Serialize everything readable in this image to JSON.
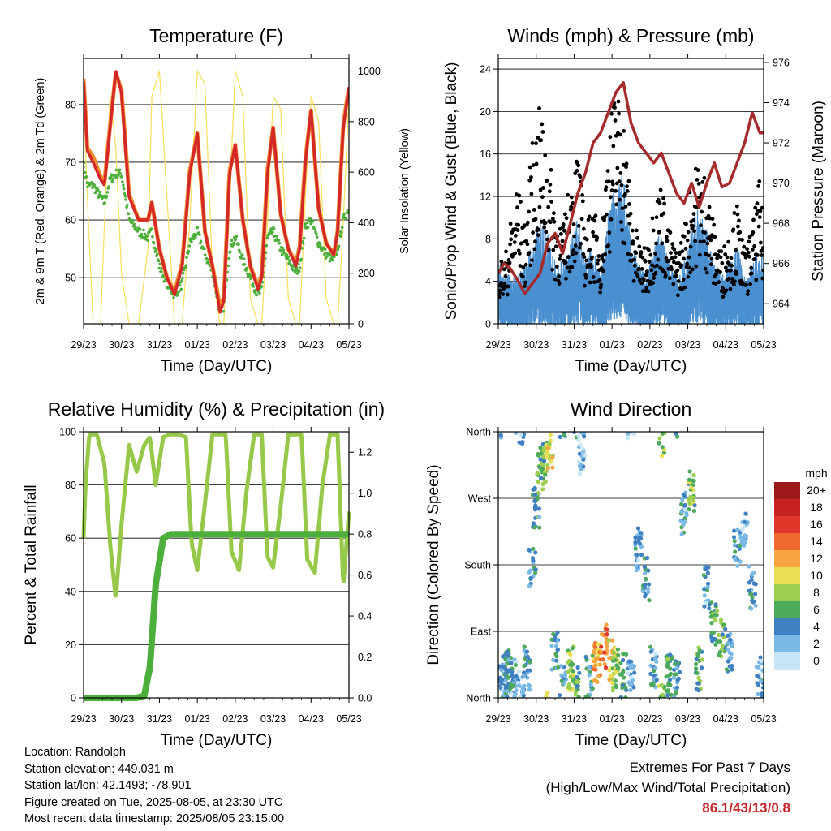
{
  "days": [
    "29/23",
    "30/23",
    "31/23",
    "01/23",
    "02/23",
    "03/23",
    "04/23",
    "05/23"
  ],
  "xlabel": "Time (Day/UTC)",
  "panels": {
    "temperature": {
      "title": "Temperature (F)",
      "ylabel_left": "2m & 9m T (Red, Orange) & 2m Td (Green)",
      "ylabel_right": "Solar Insolation (Yellow)"
    },
    "winds": {
      "title": "Winds (mph) & Pressure (mb)",
      "ylabel_left": "Sonic/Prop Wind & Gust (Blue, Black)",
      "ylabel_right": "Station Pressure (Maroon)"
    },
    "humidity": {
      "title": "Relative Humidity (%) & Precipitation (in)",
      "ylabel_left": "Percent & Total Rainfall"
    },
    "direction": {
      "title": "Wind Direction",
      "ylabel_left": "Direction (Colored By Speed)",
      "legend_title": "mph",
      "legend": [
        {
          "label": "20+",
          "color": "#9e1a1a"
        },
        {
          "label": "18",
          "color": "#c72222"
        },
        {
          "label": "16",
          "color": "#e0372b"
        },
        {
          "label": "14",
          "color": "#ef6a2e"
        },
        {
          "label": "12",
          "color": "#f7a541"
        },
        {
          "label": "10",
          "color": "#e8e052"
        },
        {
          "label": "8",
          "color": "#9ccf4f"
        },
        {
          "label": "6",
          "color": "#4caa5a"
        },
        {
          "label": "4",
          "color": "#3f80c0"
        },
        {
          "label": "2",
          "color": "#7ab8e6"
        },
        {
          "label": "0",
          "color": "#c6e5f7"
        }
      ]
    }
  },
  "info": {
    "location": "Location: Randolph",
    "elevation": "Station elevation: 449.031 m",
    "latlon": "Station lat/lon: 42.1493; -78.901",
    "created": "Figure created on Tue, 2025-08-05, at 23:30 UTC",
    "recent": "Most recent data timestamp: 2025/08/05 23:15:00"
  },
  "extremes": {
    "title": "Extremes For Past 7 Days",
    "subtitle": "(High/Low/Max Wind/Total Precipitation)",
    "value": "86.1/43/13/0.8"
  },
  "colors": {
    "temp_2m": "#d42828",
    "temp_9m": "#f08a30",
    "dewpoint": "#4caf3c",
    "solar": "#f6df5c",
    "pressure": "#a52a2a",
    "wind": "#4a90d0",
    "gust": "#000000",
    "rh": "#96c94a",
    "precip": "#4caf3c"
  },
  "chart_data": [
    {
      "type": "line",
      "title": "Temperature (F)",
      "xlabel": "Time (Day/UTC)",
      "ylabel": "2m & 9m T (Red, Orange) & 2m Td (Green)",
      "ylabel2": "Solar Insolation (Yellow)",
      "ylim": [
        42,
        88
      ],
      "y2lim": [
        0,
        1050
      ],
      "yticks": [
        50,
        60,
        70,
        80
      ],
      "y2ticks": [
        0,
        200,
        400,
        600,
        800,
        1000
      ],
      "x": [
        0,
        0.1,
        0.25,
        0.45,
        0.55,
        0.7,
        0.85,
        1,
        1.2,
        1.45,
        1.7,
        1.8,
        2,
        2.2,
        2.4,
        2.6,
        2.8,
        3,
        3.2,
        3.4,
        3.6,
        3.7,
        3.85,
        4,
        4.2,
        4.4,
        4.6,
        4.7,
        4.85,
        5,
        5.2,
        5.4,
        5.6,
        5.7,
        5.85,
        6,
        6.2,
        6.4,
        6.6,
        6.7,
        6.85,
        7
      ],
      "series": [
        {
          "name": "2m T",
          "values": [
            84,
            72,
            70,
            67,
            66,
            76,
            86,
            82,
            64,
            60,
            60,
            63,
            55,
            50,
            47,
            52,
            68,
            75,
            58,
            52,
            44,
            46,
            68,
            73,
            60,
            52,
            48,
            50,
            68,
            76,
            61,
            55,
            52,
            55,
            70,
            79,
            62,
            56,
            54,
            58,
            76,
            83
          ]
        },
        {
          "name": "9m T",
          "values": [
            84.5,
            72.5,
            71,
            67.5,
            66.5,
            76.5,
            85.5,
            82.5,
            64.5,
            60,
            60,
            63,
            55,
            50,
            47.5,
            52.5,
            68.5,
            75,
            58,
            52,
            45,
            46.5,
            68.5,
            73,
            60,
            52,
            48.5,
            50.5,
            68.5,
            76,
            61,
            55,
            52.5,
            55.5,
            70.5,
            79,
            62,
            56,
            54,
            58,
            76.5,
            83
          ]
        },
        {
          "name": "2m Td",
          "values": [
            70,
            66,
            66,
            64,
            63,
            67,
            68,
            68,
            60,
            58,
            57,
            58,
            52,
            49,
            47,
            49,
            56,
            58,
            54,
            51,
            44,
            45,
            55,
            57,
            53,
            50,
            47,
            48,
            57,
            58,
            55,
            53,
            51,
            52,
            59,
            60,
            56,
            54,
            53,
            55,
            60,
            62
          ]
        },
        {
          "name": "Solar",
          "values": [
            900,
            500,
            0,
            0,
            400,
            900,
            700,
            200,
            0,
            0,
            300,
            900,
            1000,
            500,
            0,
            0,
            400,
            1000,
            950,
            200,
            0,
            0,
            500,
            1000,
            900,
            100,
            0,
            0,
            400,
            900,
            850,
            100,
            0,
            0,
            500,
            900,
            800,
            100,
            0,
            0,
            400,
            900
          ]
        }
      ]
    },
    {
      "type": "line",
      "title": "Winds (mph) & Pressure (mb)",
      "xlabel": "Time (Day/UTC)",
      "ylabel": "Sonic/Prop Wind & Gust (Blue, Black)",
      "ylabel2": "Station Pressure (Maroon)",
      "ylim": [
        0,
        25
      ],
      "y2lim": [
        963.0,
        976.2
      ],
      "yticks": [
        0,
        4,
        8,
        12,
        16,
        20,
        24
      ],
      "y2ticks": [
        964,
        966,
        968,
        970,
        972,
        974,
        976
      ],
      "x": [
        0,
        0.15,
        0.3,
        0.5,
        0.7,
        0.9,
        1.1,
        1.3,
        1.5,
        1.7,
        1.9,
        2.1,
        2.3,
        2.5,
        2.7,
        2.9,
        3.1,
        3.3,
        3.5,
        3.7,
        3.9,
        4.1,
        4.3,
        4.5,
        4.7,
        4.9,
        5.1,
        5.3,
        5.5,
        5.7,
        5.9,
        6.1,
        6.3,
        6.5,
        6.7,
        6.9,
        7
      ],
      "series": [
        {
          "name": "Pressure",
          "values": [
            965.5,
            966,
            965.8,
            965.2,
            964.5,
            965,
            965.5,
            967,
            967.5,
            966.5,
            968,
            969.5,
            970.5,
            972,
            972.5,
            973.5,
            974.5,
            975,
            973,
            972,
            971.5,
            971,
            971.5,
            970.5,
            969.5,
            969,
            970,
            968.8,
            970,
            971,
            969.8,
            970,
            971,
            972,
            973.5,
            972.5,
            972.5
          ]
        },
        {
          "name": "Wind",
          "values": [
            4,
            3,
            3.5,
            3,
            4,
            5,
            7,
            6,
            4,
            4,
            5,
            7,
            4,
            5,
            3,
            7,
            9,
            10,
            5,
            4,
            3,
            5,
            6,
            4,
            3,
            4,
            6,
            8,
            6,
            4,
            3,
            4,
            5,
            3,
            4,
            5,
            4
          ]
        },
        {
          "name": "Gust",
          "values": [
            6,
            5,
            8,
            12,
            8,
            15,
            18,
            15,
            10,
            8,
            12,
            15,
            8,
            10,
            7,
            16,
            20,
            18,
            10,
            7,
            6,
            10,
            12,
            8,
            6,
            8,
            12,
            14,
            12,
            8,
            6,
            8,
            10,
            6,
            8,
            12,
            8
          ]
        }
      ]
    },
    {
      "type": "line",
      "title": "Relative Humidity (%) & Precipitation (in)",
      "xlabel": "Time (Day/UTC)",
      "ylabel": "Percent & Total Rainfall",
      "ylim": [
        0,
        100
      ],
      "y2lim": [
        0,
        1.3
      ],
      "yticks": [
        0,
        20,
        40,
        60,
        80,
        100
      ],
      "y2ticks": [
        0.0,
        0.2,
        0.4,
        0.6,
        0.8,
        1.0,
        1.2
      ],
      "x": [
        0,
        0.05,
        0.15,
        0.35,
        0.55,
        0.7,
        0.85,
        1,
        1.2,
        1.4,
        1.6,
        1.75,
        1.9,
        2.1,
        2.3,
        2.5,
        2.7,
        2.85,
        3,
        3.2,
        3.4,
        3.6,
        3.75,
        3.9,
        4.1,
        4.3,
        4.5,
        4.7,
        4.85,
        5,
        5.2,
        5.4,
        5.6,
        5.75,
        5.9,
        6.1,
        6.3,
        6.5,
        6.7,
        6.85,
        7
      ],
      "series": [
        {
          "name": "RH",
          "values": [
            60,
            80,
            99,
            99,
            88,
            58,
            37,
            65,
            95,
            85,
            95,
            98,
            80,
            98,
            99,
            99,
            98,
            58,
            48,
            73,
            99,
            99,
            99,
            55,
            48,
            78,
            99,
            99,
            53,
            49,
            72,
            99,
            99,
            99,
            52,
            47,
            80,
            99,
            99,
            42,
            70
          ]
        },
        {
          "name": "Precipitation",
          "values": [
            0,
            0,
            0,
            0,
            0,
            0,
            0,
            0,
            0,
            0,
            0.01,
            0.15,
            0.55,
            0.78,
            0.8,
            0.8,
            0.8,
            0.8,
            0.8,
            0.8,
            0.8,
            0.8,
            0.8,
            0.8,
            0.8,
            0.8,
            0.8,
            0.8,
            0.8,
            0.8,
            0.8,
            0.8,
            0.8,
            0.8,
            0.8,
            0.8,
            0.8,
            0.8,
            0.8,
            0.8,
            0.8
          ]
        }
      ]
    },
    {
      "type": "scatter",
      "title": "Wind Direction",
      "xlabel": "Time (Day/UTC)",
      "ylabel": "Direction (Colored By Speed)",
      "yticks": [
        "North",
        "East",
        "South",
        "West",
        "North"
      ],
      "ylim": [
        0,
        360
      ],
      "x": [
        0.1,
        0.2,
        0.3,
        0.4,
        0.6,
        0.75,
        0.9,
        1.0,
        1.1,
        1.2,
        1.35,
        1.5,
        1.7,
        1.9,
        2.05,
        2.2,
        2.4,
        2.6,
        2.8,
        3.0,
        3.1,
        3.3,
        3.5,
        3.7,
        3.9,
        4.1,
        4.3,
        4.5,
        4.7,
        4.9,
        5.1,
        5.3,
        5.5,
        5.7,
        5.9,
        6.1,
        6.3,
        6.5,
        6.7,
        6.9
      ],
      "y": [
        20,
        30,
        35,
        25,
        10,
        40,
        180,
        260,
        300,
        320,
        340,
        60,
        20,
        40,
        20,
        330,
        30,
        45,
        70,
        50,
        40,
        30,
        20,
        200,
        160,
        40,
        350,
        30,
        20,
        250,
        280,
        40,
        150,
        100,
        80,
        60,
        200,
        220,
        150,
        30
      ],
      "speeds": [
        3,
        4,
        5,
        3,
        2,
        4,
        3,
        5,
        6,
        7,
        10,
        4,
        3,
        8,
        6,
        2,
        4,
        12,
        14,
        10,
        8,
        6,
        2,
        3,
        4,
        3,
        8,
        5,
        4,
        3,
        7,
        6,
        3,
        5,
        6,
        4,
        3,
        2,
        4,
        3
      ]
    }
  ]
}
